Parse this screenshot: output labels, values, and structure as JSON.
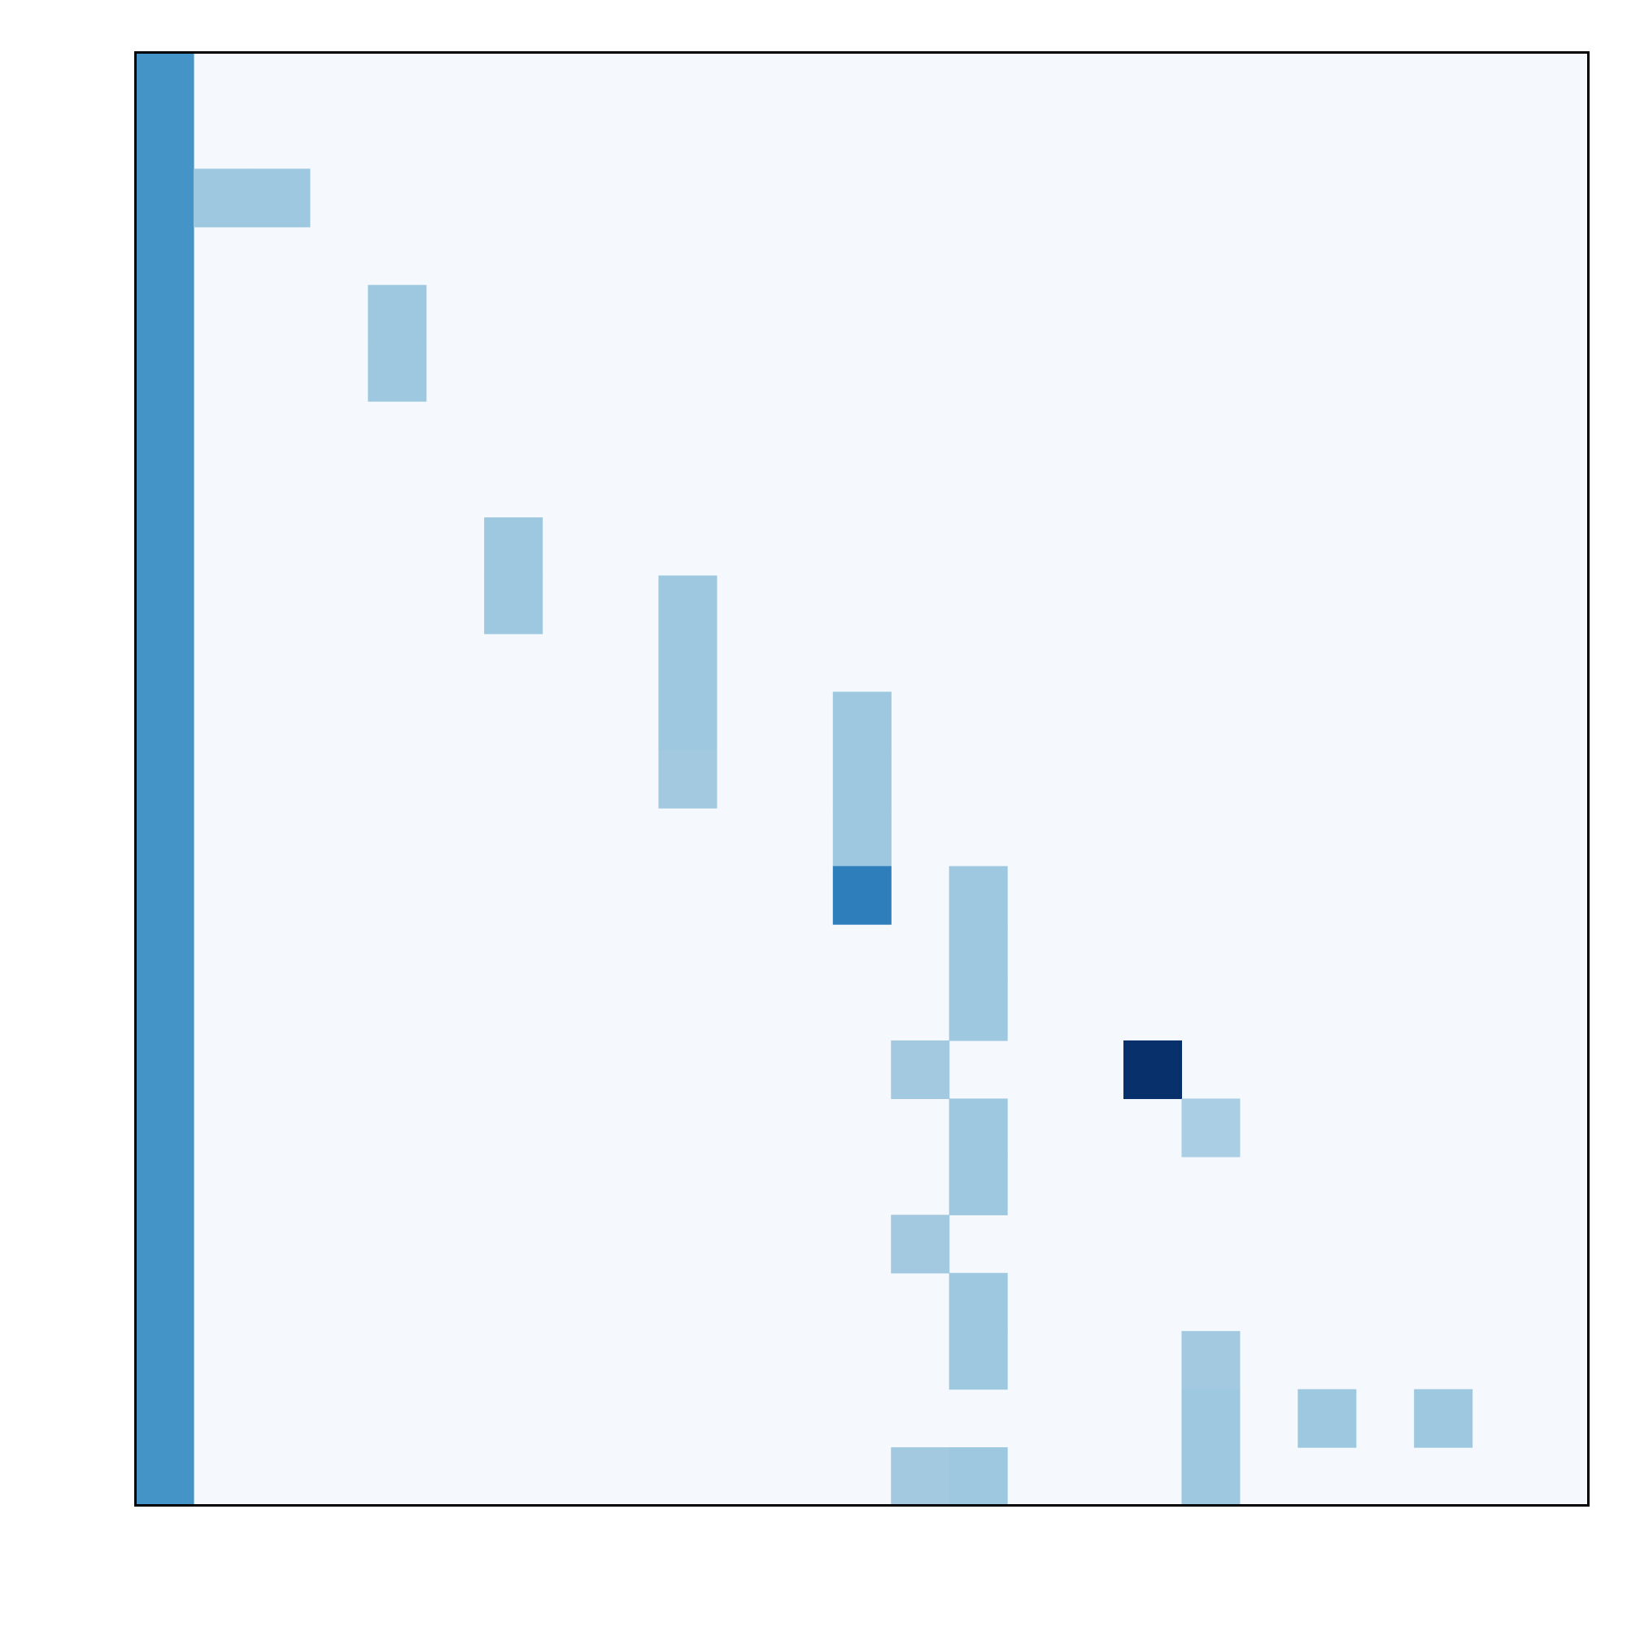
{
  "chart_data": {
    "type": "heatmap",
    "title": "",
    "xlabel": "",
    "ylabel": "",
    "grid": false,
    "n_cols": 25,
    "n_rows": 25,
    "background_color": "#f5f9fe",
    "column_0_color": "#4594c7",
    "cells": [
      {
        "row": 2,
        "col": 1,
        "color": "#9dc8e0"
      },
      {
        "row": 2,
        "col": 2,
        "color": "#9dc8e0"
      },
      {
        "row": 4,
        "col": 4,
        "color": "#9dc8e0"
      },
      {
        "row": 5,
        "col": 4,
        "color": "#9dc8e0"
      },
      {
        "row": 8,
        "col": 6,
        "color": "#9dc8e0"
      },
      {
        "row": 9,
        "col": 6,
        "color": "#9dc8e0"
      },
      {
        "row": 9,
        "col": 9,
        "color": "#9dc8e0"
      },
      {
        "row": 10,
        "col": 9,
        "color": "#9dc8e0"
      },
      {
        "row": 11,
        "col": 9,
        "color": "#9dc8e0"
      },
      {
        "row": 11,
        "col": 12,
        "color": "#9dc8e0"
      },
      {
        "row": 12,
        "col": 9,
        "color": "#a3c9e1"
      },
      {
        "row": 12,
        "col": 12,
        "color": "#9dc8e0"
      },
      {
        "row": 13,
        "col": 12,
        "color": "#9dc8e0"
      },
      {
        "row": 14,
        "col": 12,
        "color": "#2f7ebc"
      },
      {
        "row": 14,
        "col": 14,
        "color": "#9dc8e0"
      },
      {
        "row": 15,
        "col": 14,
        "color": "#9dc8e0"
      },
      {
        "row": 16,
        "col": 14,
        "color": "#9dc8e0"
      },
      {
        "row": 17,
        "col": 13,
        "color": "#a3c9e1"
      },
      {
        "row": 17,
        "col": 17,
        "color": "#08306b"
      },
      {
        "row": 18,
        "col": 14,
        "color": "#9dc8e0"
      },
      {
        "row": 18,
        "col": 18,
        "color": "#aacee4"
      },
      {
        "row": 19,
        "col": 14,
        "color": "#9dc8e0"
      },
      {
        "row": 20,
        "col": 13,
        "color": "#a3c9e1"
      },
      {
        "row": 21,
        "col": 14,
        "color": "#9dc8e0"
      },
      {
        "row": 22,
        "col": 14,
        "color": "#9dc8e0"
      },
      {
        "row": 22,
        "col": 18,
        "color": "#a3c9e1"
      },
      {
        "row": 23,
        "col": 18,
        "color": "#9dc8e0"
      },
      {
        "row": 23,
        "col": 20,
        "color": "#9dc8e0"
      },
      {
        "row": 23,
        "col": 22,
        "color": "#9dc8e0"
      },
      {
        "row": 24,
        "col": 13,
        "color": "#a3c9e1"
      },
      {
        "row": 24,
        "col": 14,
        "color": "#9dc8e0"
      },
      {
        "row": 24,
        "col": 18,
        "color": "#9dc8e0"
      }
    ]
  }
}
